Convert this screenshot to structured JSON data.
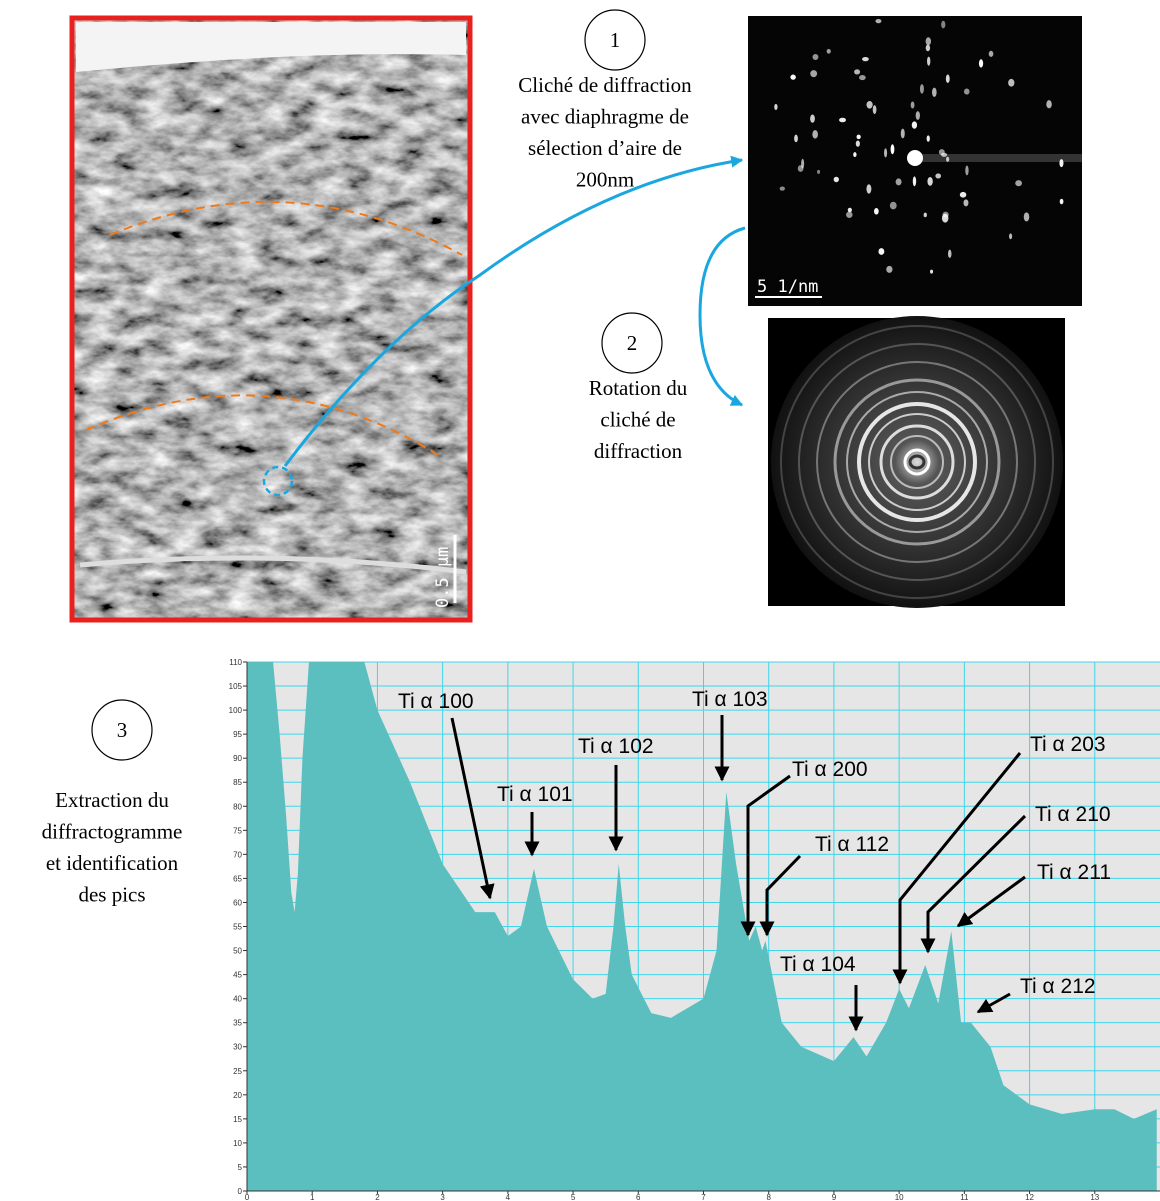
{
  "figure": {
    "steps": [
      {
        "number": "1",
        "lines": [
          "Cliché de diffraction",
          "avec diaphragme de",
          "sélection d’aire de",
          "200nm"
        ]
      },
      {
        "number": "2",
        "lines": [
          "Rotation du",
          "cliché de",
          "diffraction"
        ]
      },
      {
        "number": "3",
        "lines": [
          "Extraction du",
          "diffractogramme",
          "et identification",
          "des pics"
        ]
      }
    ],
    "scale_bars": {
      "diffraction": "5 1/nm",
      "micrograph": "0.5 µm"
    }
  },
  "chart_data": {
    "type": "area",
    "x": [
      0,
      0.4,
      0.5,
      0.6,
      0.68,
      0.73,
      0.78,
      0.85,
      0.95,
      1.8,
      2.0,
      2.5,
      3.0,
      3.5,
      3.8,
      4.0,
      4.2,
      4.4,
      4.6,
      5.0,
      5.3,
      5.5,
      5.62,
      5.7,
      5.8,
      5.9,
      6.2,
      6.5,
      7.0,
      7.2,
      7.35,
      7.5,
      7.7,
      7.8,
      7.9,
      7.95,
      8.2,
      8.5,
      9.0,
      9.3,
      9.5,
      9.8,
      10.0,
      10.15,
      10.4,
      10.6,
      10.8,
      10.95,
      11.1,
      11.4,
      11.6,
      12.0,
      12.5,
      13.0,
      13.3,
      13.6,
      13.95
    ],
    "values": [
      110,
      110,
      95,
      78,
      62,
      58,
      66,
      90,
      110,
      110,
      100,
      85,
      68,
      58,
      58,
      53,
      55,
      67,
      55,
      44,
      40,
      41,
      55,
      68,
      55,
      45,
      37,
      36,
      40,
      50,
      83,
      68,
      52,
      55,
      50,
      52,
      35,
      30,
      27,
      32,
      28,
      35,
      42,
      38,
      47,
      39,
      54,
      35,
      35,
      30,
      22,
      18,
      16,
      17,
      17,
      15,
      17
    ],
    "color": "#5bbfbf",
    "background": "#e6e6e6",
    "grid_color": "#3fd6ea",
    "xlim": [
      0,
      14
    ],
    "ylim": [
      0,
      110
    ],
    "xticks": [
      0,
      1,
      2,
      3,
      4,
      5,
      6,
      7,
      8,
      9,
      10,
      11,
      12,
      13
    ],
    "yticks": [
      0,
      5,
      10,
      15,
      20,
      25,
      30,
      35,
      40,
      45,
      50,
      55,
      60,
      65,
      70,
      75,
      80,
      85,
      90,
      95,
      100,
      105,
      110
    ],
    "grid": true,
    "annotations": [
      "Ti α 100",
      "Ti α 101",
      "Ti α 102",
      "Ti α 103",
      "Ti α 200",
      "Ti α 112",
      "Ti α 104",
      "Ti α 203",
      "Ti α 210",
      "Ti α 211",
      "Ti α 212"
    ]
  }
}
